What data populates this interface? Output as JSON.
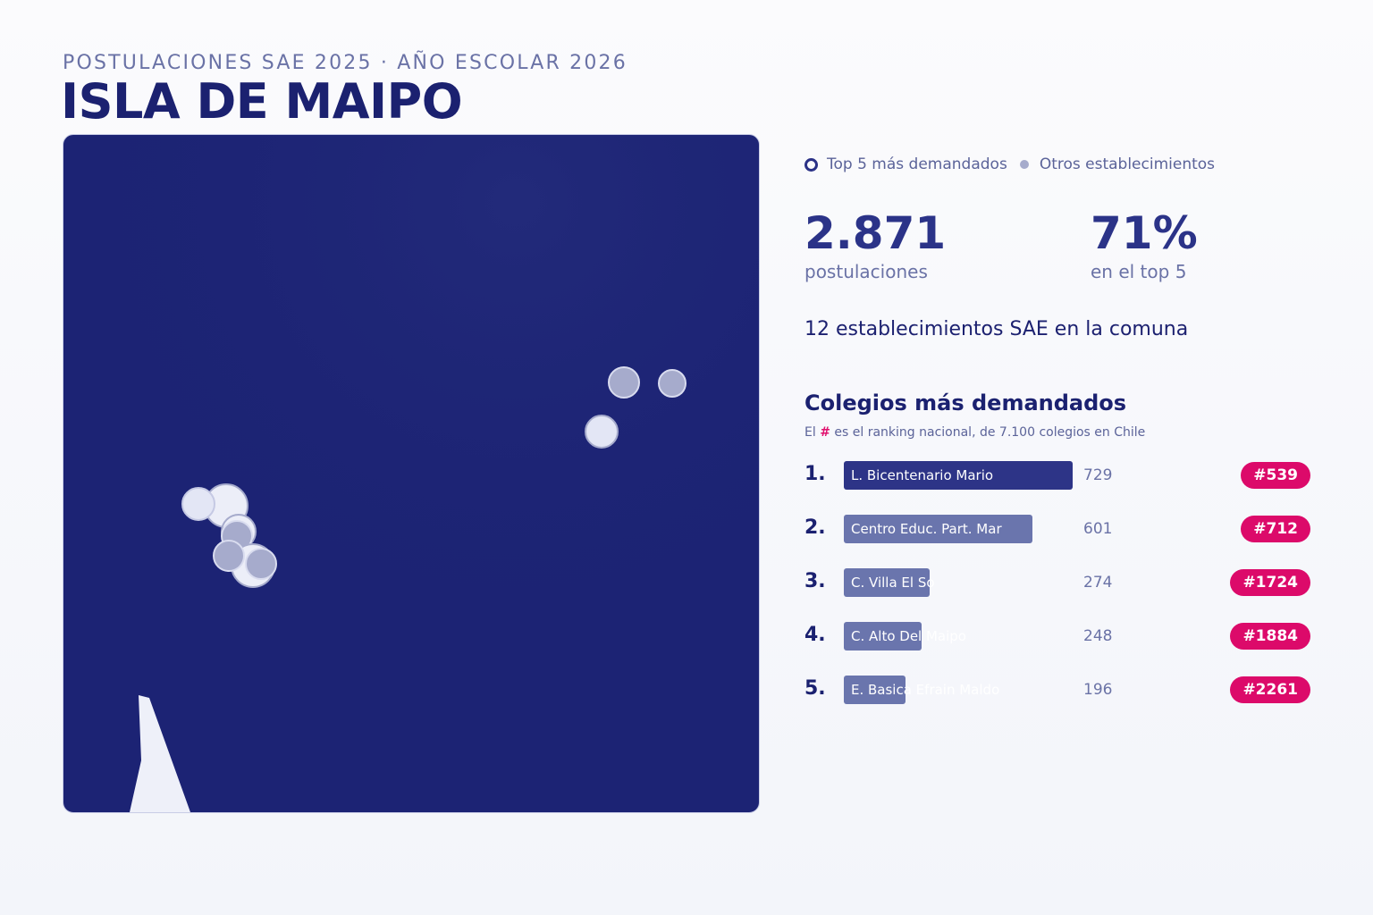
{
  "header": {
    "subtitle": "POSTULACIONES SAE 2025 · AÑO ESCOLAR 2026",
    "title": "ISLA DE MAIPO"
  },
  "legend": {
    "top5_label": "Top 5 más demandados",
    "others_label": "Otros establecimientos"
  },
  "stats": {
    "applications_value": "2.871",
    "applications_label": "postulaciones",
    "top5_share_value": "71%",
    "top5_share_label": "en el top 5",
    "schools_count_text": "12 establecimientos SAE en la comuna"
  },
  "ranking": {
    "title": "Colegios más demandados",
    "note_prefix": "El",
    "note_hash": "#",
    "note_suffix": "es el ranking nacional, de 7.100 colegios en Chile",
    "items": [
      {
        "rank": "1.",
        "name": "L. Bicentenario Mario",
        "applications": 729,
        "national_rank": "#539"
      },
      {
        "rank": "2.",
        "name": "Centro Educ. Part. Mar",
        "applications": 601,
        "national_rank": "#712"
      },
      {
        "rank": "3.",
        "name": "C. Villa El So",
        "applications": 274,
        "national_rank": "#1724"
      },
      {
        "rank": "4.",
        "name": "C. Alto Del Maipo",
        "applications": 248,
        "national_rank": "#1884"
      },
      {
        "rank": "5.",
        "name": "E. Basica Efrain Maldo",
        "applications": 196,
        "national_rank": "#2261"
      }
    ]
  },
  "colors": {
    "map_background": "#1c2374",
    "top5_bar": "#2d3487",
    "other_bar": "#6a75ad",
    "badge": "#dc0a6a",
    "marker_top5": "#eceef8",
    "marker_other": "#a6abcc"
  }
}
